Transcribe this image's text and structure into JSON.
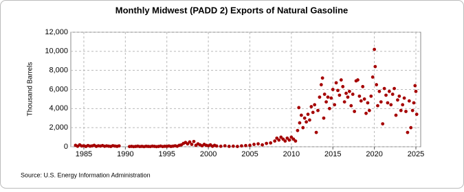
{
  "chart_data": {
    "type": "scatter",
    "title": "Monthly Midwest (PADD 2) Exports of Natural Gasoline",
    "ylabel": "Thousand Barrels",
    "source": "Source: U.S. Energy Information Administration",
    "color": "#a50000",
    "grid": true,
    "xlim": [
      1983.43,
      2025.58
    ],
    "xticks": [
      1985,
      1990,
      1995,
      2000,
      2005,
      2010,
      2015,
      2020,
      2025
    ],
    "ylim": [
      0,
      12000
    ],
    "yticks": [
      0,
      {
        "value": 2000,
        "label": "2,000"
      },
      {
        "value": 4000,
        "label": "4,000"
      },
      {
        "value": 6000,
        "label": "6,000"
      },
      {
        "value": 8000,
        "label": "8,000"
      },
      {
        "value": 10000,
        "label": "10,000"
      },
      {
        "value": 12000,
        "label": "12,000"
      }
    ],
    "x": [
      1984.0,
      1984.25,
      1984.5,
      1984.75,
      1985.0,
      1985.25,
      1985.5,
      1985.75,
      1986.0,
      1986.25,
      1986.5,
      1986.75,
      1987.0,
      1987.25,
      1987.5,
      1987.75,
      1988.0,
      1988.25,
      1988.5,
      1988.75,
      1989.0,
      1989.25,
      1990.5,
      1990.75,
      1991.0,
      1991.25,
      1991.5,
      1991.75,
      1992.0,
      1992.25,
      1992.5,
      1992.75,
      1993.0,
      1993.25,
      1993.5,
      1993.75,
      1994.0,
      1994.25,
      1994.5,
      1994.75,
      1995.0,
      1995.25,
      1995.5,
      1995.75,
      1996.0,
      1996.25,
      1996.5,
      1996.75,
      1997.0,
      1997.25,
      1997.5,
      1997.75,
      1998.0,
      1998.25,
      1998.5,
      1998.75,
      1999.0,
      1999.25,
      1999.5,
      1999.75,
      2000.0,
      2000.25,
      2000.5,
      2000.75,
      2001.0,
      2001.5,
      2002.0,
      2002.5,
      2003.0,
      2003.5,
      2004.0,
      2004.5,
      2005.0,
      2005.5,
      2006.0,
      2006.5,
      2007.0,
      2007.5,
      2008.0,
      2008.25,
      2008.5,
      2008.75,
      2009.0,
      2009.25,
      2009.5,
      2009.75,
      2010.0,
      2010.25,
      2010.5,
      2010.75,
      2010.9,
      2011.0,
      2011.2,
      2011.4,
      2011.6,
      2011.8,
      2012.0,
      2012.2,
      2012.4,
      2012.6,
      2012.8,
      2013.0,
      2013.2,
      2013.4,
      2013.6,
      2013.75,
      2013.9,
      2014.0,
      2014.2,
      2014.4,
      2014.6,
      2014.8,
      2015.0,
      2015.2,
      2015.4,
      2015.6,
      2015.8,
      2016.0,
      2016.2,
      2016.4,
      2016.6,
      2016.8,
      2017.0,
      2017.2,
      2017.4,
      2017.6,
      2017.8,
      2018.0,
      2018.2,
      2018.4,
      2018.6,
      2018.8,
      2019.0,
      2019.2,
      2019.4,
      2019.6,
      2019.8,
      2020.0,
      2020.1,
      2020.25,
      2020.4,
      2020.6,
      2020.8,
      2021.0,
      2021.2,
      2021.4,
      2021.6,
      2021.8,
      2022.0,
      2022.2,
      2022.4,
      2022.6,
      2022.8,
      2023.0,
      2023.2,
      2023.4,
      2023.6,
      2023.8,
      2024.0,
      2024.2,
      2024.4,
      2024.6,
      2024.75,
      2024.9,
      2025.0,
      2025.1
    ],
    "values": [
      150,
      50,
      200,
      80,
      100,
      30,
      120,
      60,
      90,
      150,
      40,
      100,
      70,
      120,
      50,
      90,
      60,
      30,
      110,
      70,
      40,
      90,
      20,
      40,
      10,
      30,
      60,
      20,
      40,
      10,
      50,
      30,
      20,
      60,
      40,
      10,
      30,
      70,
      20,
      50,
      40,
      80,
      30,
      60,
      100,
      50,
      150,
      200,
      350,
      450,
      300,
      500,
      250,
      550,
      150,
      300,
      200,
      100,
      250,
      150,
      100,
      200,
      50,
      150,
      80,
      50,
      100,
      40,
      60,
      30,
      90,
      120,
      150,
      250,
      300,
      200,
      350,
      400,
      600,
      900,
      700,
      1000,
      800,
      600,
      900,
      700,
      1000,
      800,
      600,
      1700,
      4100,
      2500,
      3300,
      2000,
      3000,
      2600,
      3400,
      2800,
      4200,
      3600,
      4400,
      1500,
      3800,
      5200,
      6500,
      7200,
      3000,
      5500,
      4700,
      5200,
      4000,
      5100,
      6000,
      4400,
      6700,
      5900,
      5400,
      7000,
      6300,
      4700,
      5600,
      5200,
      5800,
      4300,
      5500,
      3700,
      6900,
      7000,
      5300,
      4800,
      6300,
      5000,
      3500,
      4600,
      3800,
      5300,
      7300,
      10200,
      8400,
      6500,
      4300,
      5800,
      4700,
      2400,
      6100,
      5400,
      4600,
      5800,
      4400,
      5500,
      6100,
      3300,
      4900,
      5300,
      3800,
      4400,
      5100,
      3700,
      1500,
      4800,
      2000,
      3800,
      4600,
      6400,
      5800,
      3400
    ]
  }
}
